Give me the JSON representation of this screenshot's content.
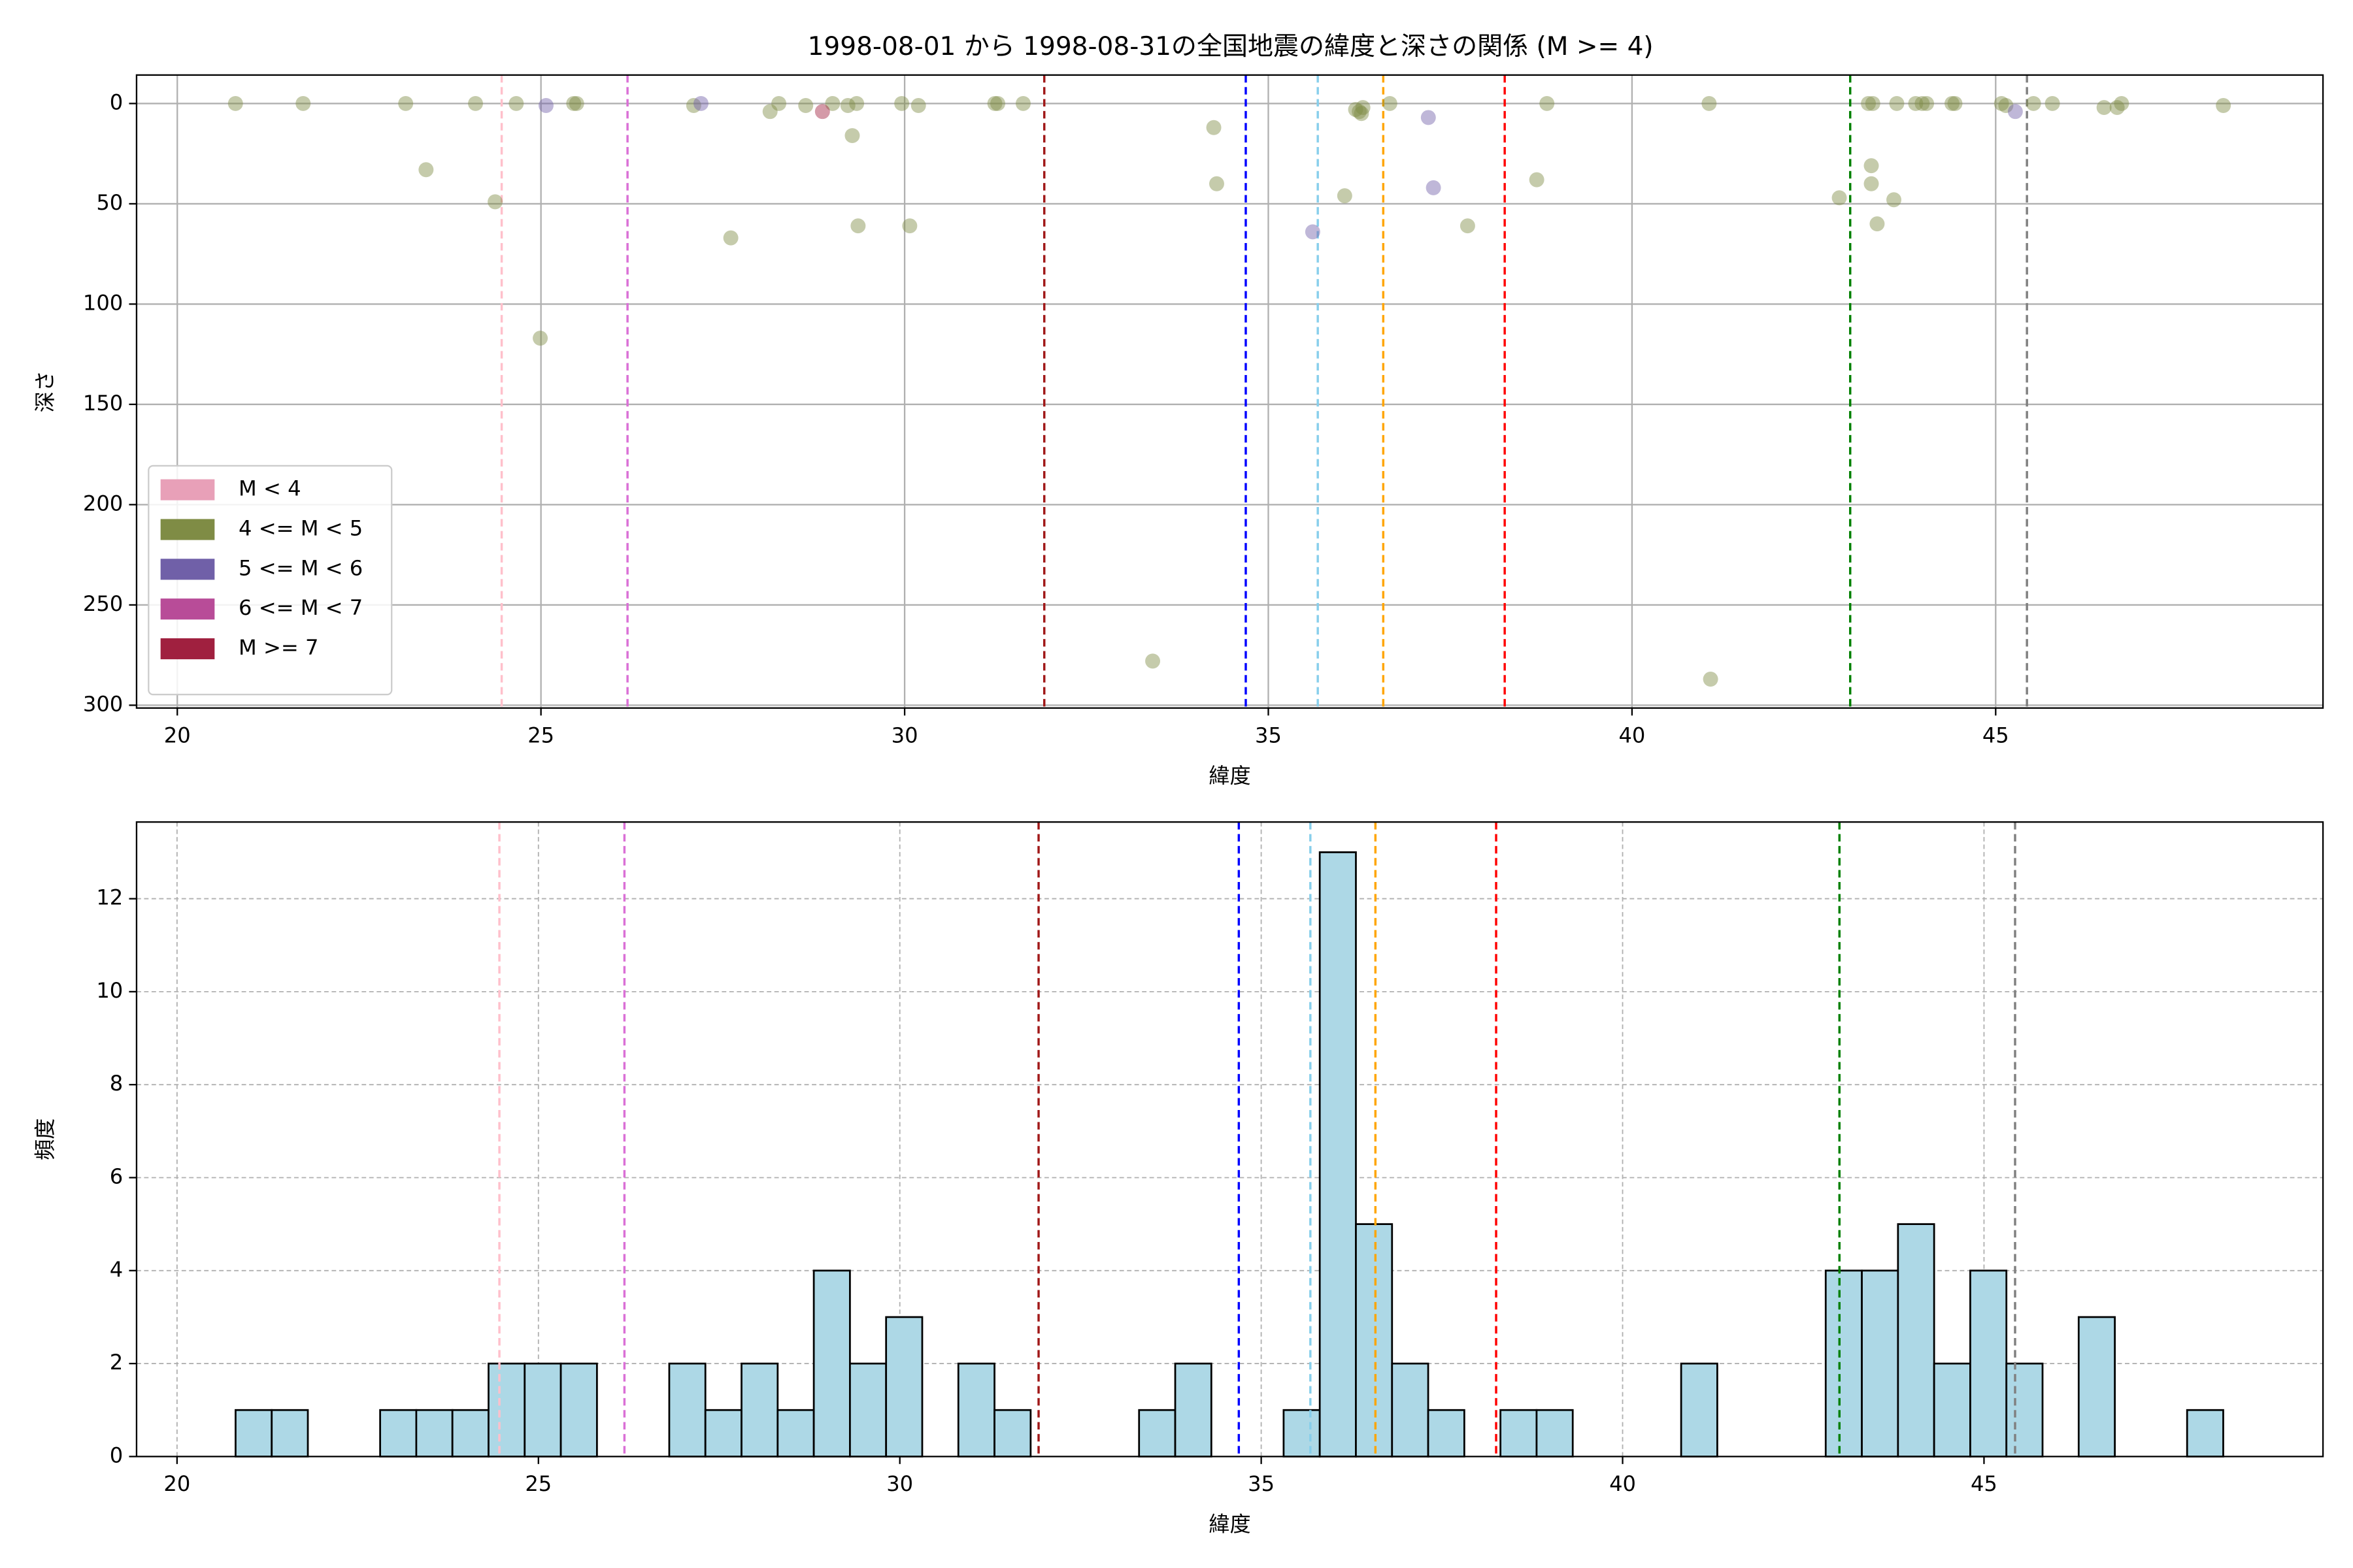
{
  "chart_data": [
    {
      "type": "scatter",
      "title": "1998-08-01 から 1998-08-31の全国地震の緯度と深さの関係 (M >= 4)",
      "x_label": "緯度",
      "y_label": "深さ",
      "xlim": [
        19.44,
        49.5
      ],
      "ylim": [
        301.4,
        -14.2
      ],
      "xticks": [
        20,
        25,
        30,
        35,
        40,
        45
      ],
      "yticks": [
        0,
        50,
        100,
        150,
        200,
        250,
        300
      ],
      "grid": true,
      "grid_style": "solid",
      "legend": "lower left",
      "marker_alpha": 0.45,
      "series": [
        {
          "name": "M < 4",
          "color": "#e8a0b8",
          "x": [],
          "y": []
        },
        {
          "name": "4 <= M < 5",
          "color": "#7f8c45",
          "x": [
            20.8,
            21.73,
            23.14,
            23.42,
            24.1,
            24.37,
            24.66,
            24.99,
            25.45,
            25.49,
            27.1,
            27.61,
            28.15,
            28.27,
            28.64,
            29.01,
            29.22,
            29.28,
            29.34,
            29.36,
            29.96,
            30.07,
            30.19,
            31.24,
            31.28,
            31.63,
            33.41,
            34.25,
            34.29,
            36.05,
            36.2,
            36.25,
            36.28,
            36.3,
            36.67,
            37.74,
            38.69,
            38.83,
            41.06,
            41.08,
            42.85,
            43.25,
            43.29,
            43.29,
            43.31,
            43.37,
            43.6,
            43.64,
            43.9,
            43.99,
            44.05,
            44.4,
            44.44,
            45.08,
            45.14,
            45.52,
            45.78,
            46.49,
            46.67,
            46.73,
            48.13
          ],
          "y": [
            0,
            0,
            0,
            33,
            0,
            49,
            0,
            117,
            0,
            0,
            1,
            67,
            4,
            0,
            1,
            0,
            1,
            16,
            0,
            61,
            0,
            61,
            1,
            0,
            0,
            0,
            278,
            12,
            40,
            46,
            3,
            4,
            5,
            2,
            0,
            61,
            38,
            0,
            0,
            287,
            47,
            0,
            31,
            40,
            0,
            60,
            48,
            0,
            0,
            0,
            0,
            0,
            0,
            0,
            1,
            0,
            0,
            2,
            2,
            0,
            1
          ]
        },
        {
          "name": "5 <= M < 6",
          "color": "#7060a8",
          "x": [
            25.07,
            27.2,
            35.61,
            37.2,
            37.27,
            45.27
          ],
          "y": [
            1,
            0,
            64,
            7,
            42,
            4
          ]
        },
        {
          "name": "6 <= M < 7",
          "color": "#b84c98",
          "x": [],
          "y": []
        },
        {
          "name": "M >= 7",
          "color": "#a0203f",
          "x": [
            28.87
          ],
          "y": [
            4
          ]
        }
      ],
      "vlines": [
        {
          "x": 24.46,
          "color": "pink"
        },
        {
          "x": 26.19,
          "color": "orchid"
        },
        {
          "x": 31.92,
          "color": "#a01818"
        },
        {
          "x": 34.69,
          "color": "blue"
        },
        {
          "x": 35.68,
          "color": "skyblue"
        },
        {
          "x": 36.58,
          "color": "orange"
        },
        {
          "x": 38.25,
          "color": "red"
        },
        {
          "x": 43.0,
          "color": "green"
        },
        {
          "x": 45.43,
          "color": "gray"
        }
      ]
    },
    {
      "type": "histogram",
      "x_label": "緯度",
      "y_label": "頻度",
      "xlim": [
        19.44,
        49.69
      ],
      "ylim": [
        0,
        13.65
      ],
      "xticks": [
        20,
        25,
        30,
        35,
        40,
        45
      ],
      "yticks": [
        0,
        2,
        4,
        6,
        8,
        10,
        12
      ],
      "grid": true,
      "grid_style": "dashed",
      "color": "lightblue",
      "edgecolor": "black",
      "bins": [
        20.81,
        21.31,
        21.81,
        22.31,
        22.81,
        23.31,
        23.81,
        24.31,
        24.81,
        25.31,
        25.81,
        26.31,
        26.81,
        27.31,
        27.81,
        28.31,
        28.81,
        29.31,
        29.81,
        30.31,
        30.81,
        31.31,
        31.81,
        32.31,
        32.81,
        33.31,
        33.81,
        34.31,
        34.81,
        35.31,
        35.81,
        36.31,
        36.81,
        37.31,
        37.81,
        38.31,
        38.81,
        39.31,
        39.81,
        40.31,
        40.81,
        41.31,
        41.81,
        42.31,
        42.81,
        43.31,
        43.81,
        44.31,
        44.81,
        45.31,
        45.81,
        46.31,
        46.81,
        47.31,
        47.81,
        48.31
      ],
      "values": [
        1,
        1,
        0,
        0,
        1,
        1,
        1,
        2,
        2,
        2,
        0,
        0,
        2,
        1,
        2,
        1,
        4,
        2,
        3,
        0,
        2,
        1,
        0,
        0,
        0,
        1,
        2,
        0,
        0,
        1,
        13,
        5,
        2,
        1,
        0,
        1,
        1,
        0,
        0,
        0,
        2,
        0,
        0,
        0,
        4,
        4,
        5,
        2,
        4,
        2,
        0,
        3,
        0,
        0,
        1
      ],
      "vlines": [
        {
          "x": 24.46,
          "color": "pink"
        },
        {
          "x": 26.19,
          "color": "orchid"
        },
        {
          "x": 31.92,
          "color": "#a01818"
        },
        {
          "x": 34.69,
          "color": "blue"
        },
        {
          "x": 35.68,
          "color": "skyblue"
        },
        {
          "x": 36.58,
          "color": "orange"
        },
        {
          "x": 38.25,
          "color": "red"
        },
        {
          "x": 43.0,
          "color": "green"
        },
        {
          "x": 45.43,
          "color": "gray"
        }
      ]
    }
  ]
}
